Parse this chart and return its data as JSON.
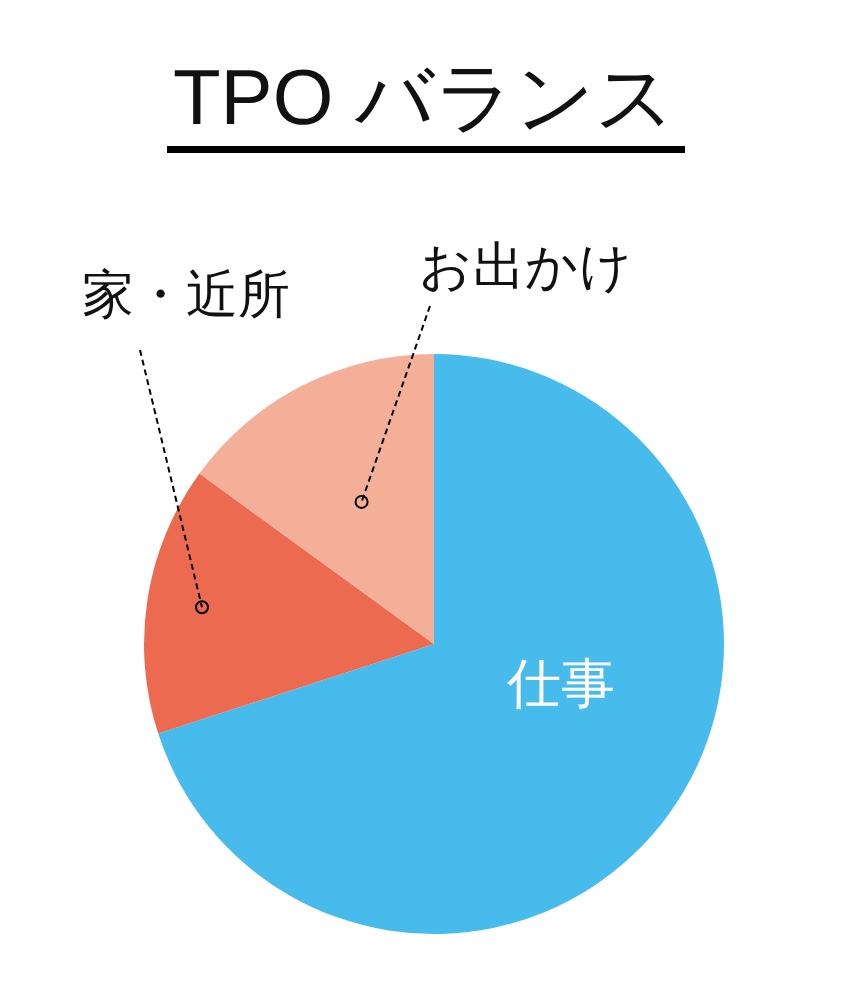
{
  "chart_data": {
    "type": "pie",
    "title": "TPO バランス",
    "categories": [
      "仕事",
      "家・近所",
      "お出かけ"
    ],
    "values": [
      70,
      15,
      15
    ],
    "colors": [
      "#47bbec",
      "#ec6b50",
      "#f4af99"
    ]
  }
}
